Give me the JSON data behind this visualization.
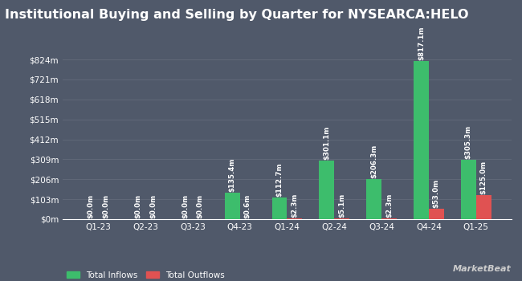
{
  "title": "Institutional Buying and Selling by Quarter for NYSEARCA:HELO",
  "quarters": [
    "Q1-23",
    "Q2-23",
    "Q3-23",
    "Q4-23",
    "Q1-24",
    "Q2-24",
    "Q3-24",
    "Q4-24",
    "Q1-25"
  ],
  "inflows": [
    0.0,
    0.0,
    0.0,
    135.4,
    112.7,
    301.1,
    206.3,
    817.1,
    305.3
  ],
  "outflows": [
    0.0,
    0.0,
    0.0,
    0.6,
    2.3,
    5.1,
    2.3,
    53.0,
    125.0
  ],
  "inflow_labels": [
    "$0.0m",
    "$0.0m",
    "$0.0m",
    "$135.4m",
    "$112.7m",
    "$301.1m",
    "$206.3m",
    "$817.1m",
    "$305.3m"
  ],
  "outflow_labels": [
    "$0.0m",
    "$0.0m",
    "$0.0m",
    "$0.6m",
    "$2.3m",
    "$5.1m",
    "$2.3m",
    "$53.0m",
    "$125.0m"
  ],
  "inflow_color": "#3dbd6c",
  "outflow_color": "#e05252",
  "bg_color": "#50596a",
  "text_color": "#ffffff",
  "grid_color": "#606878",
  "ytick_labels": [
    "$0m",
    "$103m",
    "$206m",
    "$309m",
    "$412m",
    "$515m",
    "$618m",
    "$721m",
    "$824m"
  ],
  "ytick_values": [
    0,
    103,
    206,
    309,
    412,
    515,
    618,
    721,
    824
  ],
  "ymax": 870,
  "bar_width": 0.32,
  "legend_inflow": "Total Inflows",
  "legend_outflow": "Total Outflows",
  "title_fontsize": 11.5,
  "label_fontsize": 6.2,
  "tick_fontsize": 7.5,
  "legend_fontsize": 7.5
}
